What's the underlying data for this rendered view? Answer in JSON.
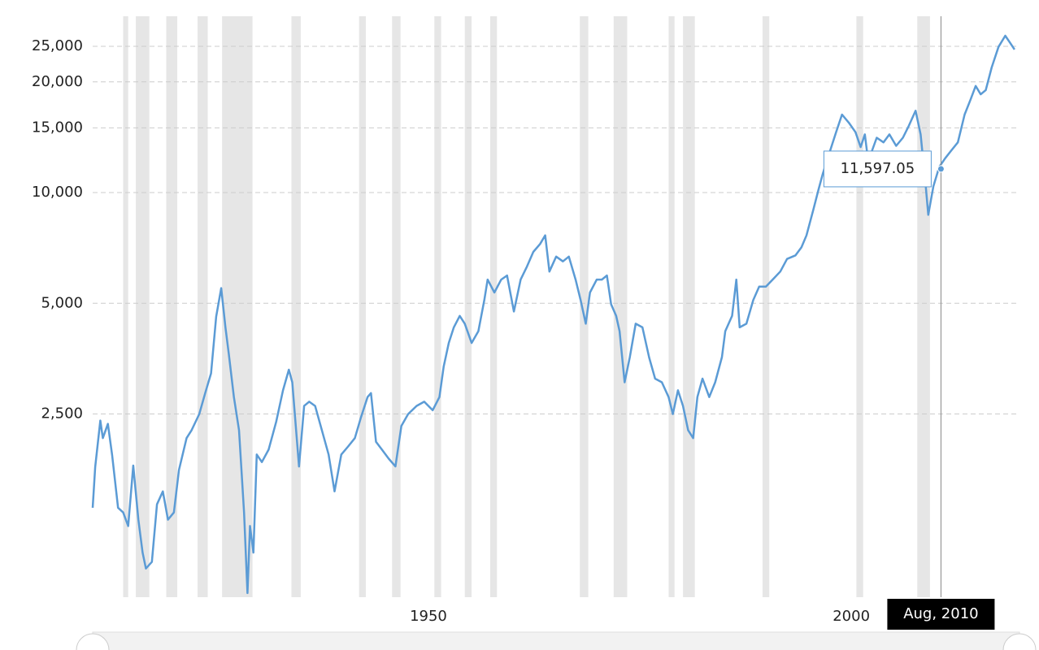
{
  "chart_data": {
    "type": "line",
    "log_scale": true,
    "grid": true,
    "xlim": [
      1910.3,
      2019.5
    ],
    "ylim": [
      794,
      30170
    ],
    "xticks": [
      1950,
      2000
    ],
    "yticks": [
      {
        "value": 2500,
        "label": "2,500"
      },
      {
        "value": 5000,
        "label": "5,000"
      },
      {
        "value": 10000,
        "label": "10,000"
      },
      {
        "value": 15000,
        "label": "15,000"
      },
      {
        "value": 20000,
        "label": "20,000"
      },
      {
        "value": 25000,
        "label": "25,000"
      }
    ],
    "recession_color": "#e6e6e6",
    "recessions": [
      [
        1913.9,
        1914.5
      ],
      [
        1915.4,
        1917.0
      ],
      [
        1919.0,
        1920.3
      ],
      [
        1922.7,
        1923.9
      ],
      [
        1925.6,
        1929.2
      ],
      [
        1933.8,
        1934.9
      ],
      [
        1941.8,
        1942.6
      ],
      [
        1945.7,
        1946.7
      ],
      [
        1950.7,
        1951.5
      ],
      [
        1954.3,
        1955.1
      ],
      [
        1957.3,
        1958.1
      ],
      [
        1967.9,
        1968.9
      ],
      [
        1971.9,
        1973.5
      ],
      [
        1978.4,
        1979.1
      ],
      [
        1980.1,
        1981.5
      ],
      [
        1989.5,
        1990.3
      ],
      [
        2000.6,
        2001.4
      ],
      [
        2007.8,
        2009.3
      ]
    ],
    "x": [
      1910.3,
      1910.6,
      1911.2,
      1911.5,
      1912.1,
      1912.6,
      1913.3,
      1913.9,
      1914.5,
      1915.1,
      1915.7,
      1916.2,
      1916.6,
      1917.3,
      1917.9,
      1918.6,
      1919.2,
      1919.9,
      1920.5,
      1921.4,
      1922.0,
      1922.9,
      1923.6,
      1924.3,
      1924.9,
      1925.5,
      1926.0,
      1926.4,
      1927.0,
      1927.6,
      1928.2,
      1928.6,
      1928.9,
      1929.3,
      1929.7,
      1930.3,
      1931.1,
      1932.0,
      1932.8,
      1933.5,
      1933.9,
      1934.7,
      1935.3,
      1935.9,
      1936.6,
      1937.4,
      1938.2,
      1938.9,
      1939.7,
      1940.5,
      1941.3,
      1942.0,
      1942.8,
      1943.2,
      1943.8,
      1944.5,
      1945.3,
      1946.1,
      1946.8,
      1947.6,
      1948.6,
      1949.5,
      1950.5,
      1951.3,
      1951.8,
      1952.4,
      1953.0,
      1953.7,
      1954.3,
      1955.1,
      1955.9,
      1956.6,
      1957.0,
      1957.8,
      1958.6,
      1959.3,
      1960.1,
      1960.9,
      1961.6,
      1962.4,
      1963.2,
      1963.8,
      1964.3,
      1965.1,
      1965.9,
      1966.6,
      1967.4,
      1968.0,
      1968.6,
      1969.1,
      1969.9,
      1970.5,
      1971.1,
      1971.6,
      1972.2,
      1972.6,
      1973.2,
      1973.8,
      1974.5,
      1975.3,
      1976.1,
      1976.8,
      1977.6,
      1978.4,
      1978.9,
      1979.5,
      1980.1,
      1980.7,
      1981.3,
      1981.8,
      1982.4,
      1983.2,
      1983.9,
      1984.7,
      1985.1,
      1985.9,
      1986.4,
      1986.8,
      1987.6,
      1988.4,
      1989.1,
      1989.9,
      1990.7,
      1991.6,
      1992.4,
      1993.4,
      1994.1,
      1994.7,
      1995.5,
      1996.1,
      1996.6,
      1997.4,
      1998.2,
      1998.9,
      1999.7,
      2000.5,
      2001.1,
      2001.6,
      2002.0,
      2003.0,
      2003.8,
      2004.5,
      2005.3,
      2006.1,
      2006.8,
      2007.6,
      2008.2,
      2008.8,
      2009.1,
      2009.7,
      2010.4,
      2011.1,
      2011.8,
      2012.6,
      2013.4,
      2014.1,
      2014.7,
      2015.3,
      2015.9,
      2016.6,
      2017.4,
      2018.2,
      2018.8,
      2019.3
    ],
    "series": [
      {
        "color": "#5b9bd5",
        "values": [
          1390,
          1795,
          2400,
          2150,
          2350,
          1935,
          1390,
          1350,
          1240,
          1810,
          1290,
          1050,
          950,
          990,
          1420,
          1540,
          1290,
          1350,
          1760,
          2150,
          2260,
          2500,
          2850,
          3225,
          4600,
          5500,
          4300,
          3630,
          2780,
          2260,
          1350,
          815,
          1240,
          1050,
          1940,
          1850,
          2000,
          2380,
          2900,
          3300,
          3050,
          1800,
          2630,
          2700,
          2630,
          2260,
          1940,
          1540,
          1940,
          2040,
          2150,
          2440,
          2780,
          2850,
          2100,
          2000,
          1890,
          1800,
          2320,
          2500,
          2630,
          2700,
          2560,
          2780,
          3360,
          3900,
          4300,
          4620,
          4400,
          3900,
          4200,
          5100,
          5800,
          5350,
          5800,
          5950,
          4750,
          5800,
          6260,
          6900,
          7250,
          7650,
          6100,
          6700,
          6500,
          6700,
          5800,
          5100,
          4400,
          5350,
          5800,
          5800,
          5950,
          4970,
          4620,
          4200,
          3050,
          3560,
          4400,
          4300,
          3560,
          3120,
          3050,
          2780,
          2500,
          2900,
          2630,
          2260,
          2150,
          2780,
          3120,
          2780,
          3050,
          3570,
          4200,
          4620,
          5800,
          4300,
          4400,
          5100,
          5550,
          5550,
          5800,
          6100,
          6600,
          6750,
          7100,
          7650,
          8960,
          10150,
          11200,
          12800,
          14600,
          16300,
          15500,
          14600,
          13300,
          14400,
          12170,
          14100,
          13700,
          14400,
          13400,
          14100,
          15200,
          16700,
          14400,
          10400,
          8700,
          10400,
          11750,
          12400,
          13000,
          13700,
          16300,
          17900,
          19500,
          18500,
          19000,
          21900,
          24900,
          26700,
          25500,
          24500
        ]
      }
    ],
    "tooltip": {
      "x": 2010.6,
      "value": 11597.05,
      "value_label": "11,597.05",
      "x_label": "Aug, 2010"
    }
  }
}
